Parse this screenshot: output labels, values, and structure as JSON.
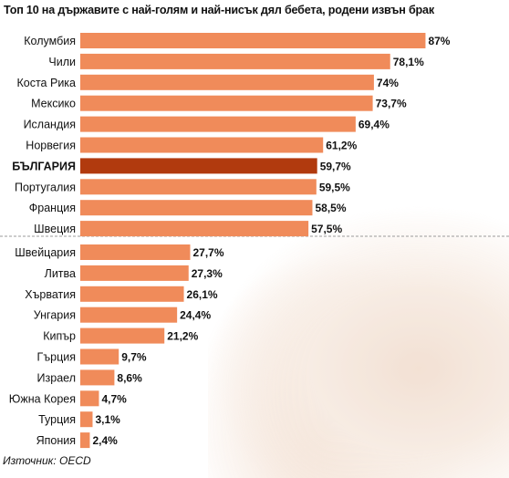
{
  "title": "Топ 10 на държавите с най-голям и най-нисък дял бебета, родени извън брак",
  "source": "Източник: OECD",
  "colors": {
    "bar": "#f08b5a",
    "highlight": "#b13a0e",
    "label": "#111111",
    "divider": "#9a9a9a"
  },
  "chart_data": {
    "type": "bar",
    "orientation": "horizontal",
    "xlim": [
      0,
      100
    ],
    "unit": "%",
    "groups": [
      {
        "categories": [
          "Колумбия",
          "Чили",
          "Коста Рика",
          "Мексико",
          "Исландия",
          "Норвегия",
          "БЪЛГАРИЯ",
          "Португалия",
          "Франция",
          "Швеция"
        ],
        "values": [
          87,
          78.1,
          74,
          73.7,
          69.4,
          61.2,
          59.7,
          59.5,
          58.5,
          57.5
        ],
        "value_labels": [
          "87%",
          "78,1%",
          "74%",
          "73,7%",
          "69,4%",
          "61,2%",
          "59,7%",
          "59,5%",
          "58,5%",
          "57,5%"
        ],
        "highlight_index": 6
      },
      {
        "categories": [
          "Швейцария",
          "Литва",
          "Хърватия",
          "Унгария",
          "Кипър",
          "Гърция",
          "Израел",
          "Южна Корея",
          "Турция",
          "Япония"
        ],
        "values": [
          27.7,
          27.3,
          26.1,
          24.4,
          21.2,
          9.7,
          8.6,
          4.7,
          3.1,
          2.4
        ],
        "value_labels": [
          "27,7%",
          "27,3%",
          "26,1%",
          "24,4%",
          "21,2%",
          "9,7%",
          "8,6%",
          "4,7%",
          "3,1%",
          "2,4%"
        ]
      }
    ]
  }
}
